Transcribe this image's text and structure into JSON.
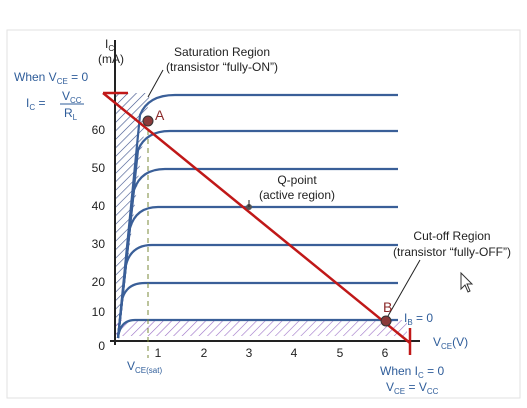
{
  "y_axis": {
    "main": "I",
    "sub": "C",
    "unit": "(mA)"
  },
  "x_axis": {
    "main": "V",
    "sub": "CE",
    "unit": "(V)"
  },
  "y_ticks": [
    "0",
    "10",
    "20",
    "30",
    "40",
    "50",
    "60"
  ],
  "x_ticks": [
    "1",
    "2",
    "3",
    "4",
    "5",
    "6"
  ],
  "when_vce": {
    "prefix": "When V",
    "sub": "CE",
    "suffix": " = 0"
  },
  "ic_formula": {
    "lhs": "I",
    "lhs_sub": "C",
    "eq": " = ",
    "num": "V",
    "num_sub": "CC",
    "den": "R",
    "den_sub": "L"
  },
  "saturation": {
    "line1": "Saturation Region",
    "line2": "(transistor “fully-ON”)"
  },
  "qpoint": {
    "line1": "Q-point",
    "line2": "(active region)"
  },
  "cutoff": {
    "line1": "Cut-off Region",
    "line2": "(transistor “fully-OFF”)"
  },
  "point_a": "A",
  "point_b": "B",
  "ib_label": {
    "main": "I",
    "sub": "B",
    "suffix": " = 0"
  },
  "vce_sat": {
    "main": "V",
    "sub": "CE(sat)"
  },
  "when_ic": {
    "line1": "When I",
    "line1_sub": "C",
    "line1_suffix": " = 0",
    "line2": "V",
    "line2_sub": "CE",
    "line2_mid": " = V",
    "line2_sub2": "CC"
  }
}
